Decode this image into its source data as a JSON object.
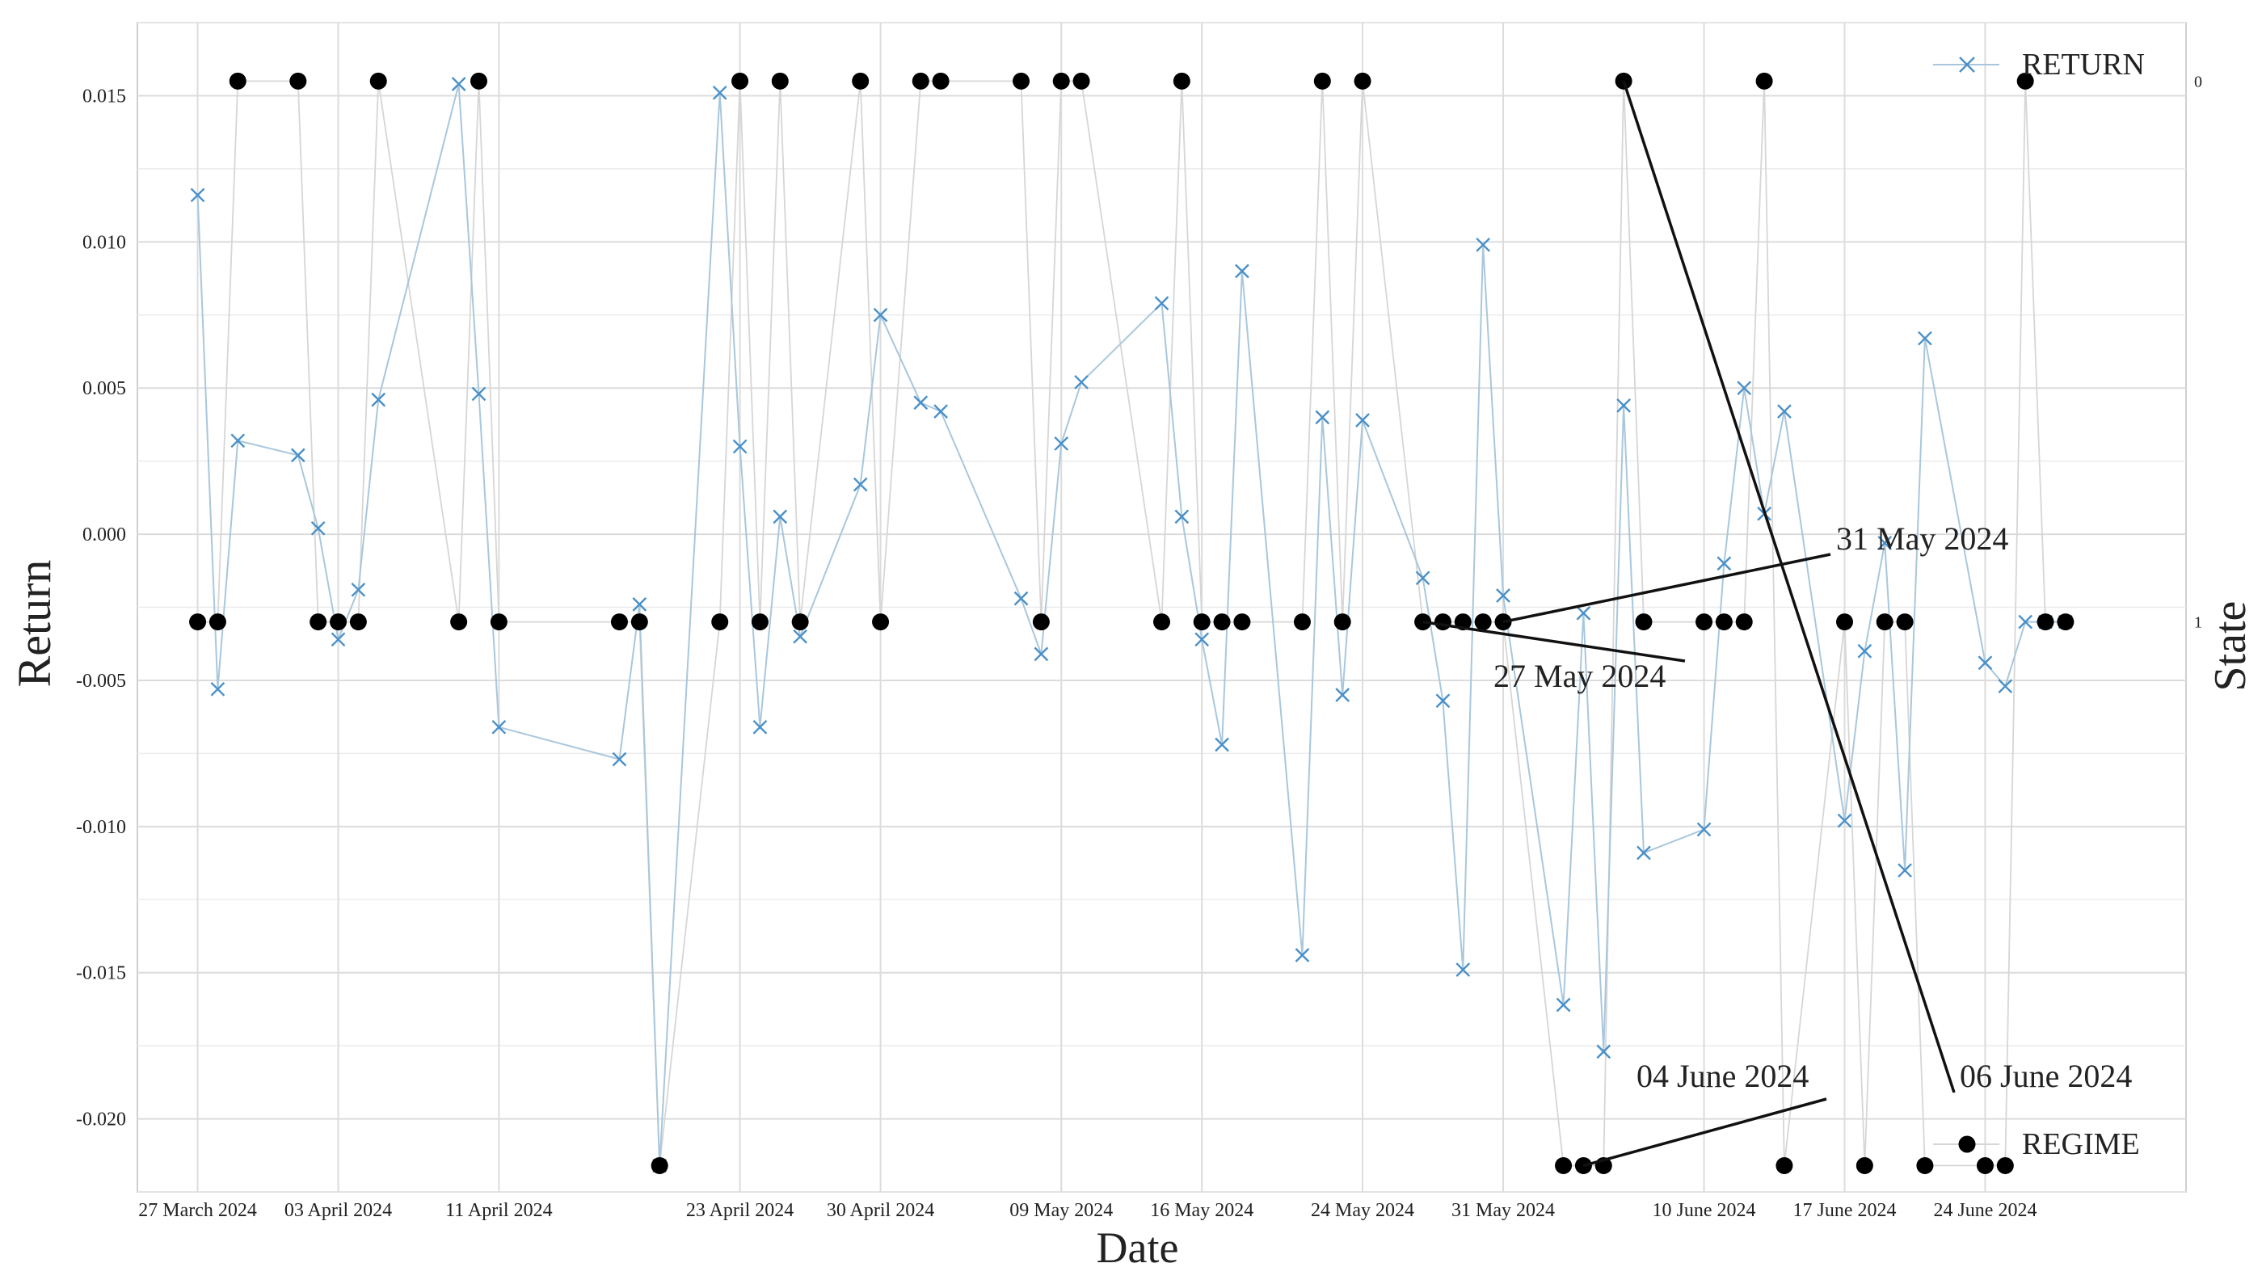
{
  "chart_data": {
    "type": "line",
    "xlabel": "Date",
    "ylabel": "Return",
    "y2label": "State",
    "ylim": [
      -0.0225,
      0.0175
    ],
    "yticks": [
      -0.02,
      -0.015,
      -0.01,
      -0.005,
      0.0,
      0.005,
      0.01,
      0.015
    ],
    "ytick_labels": [
      "-0.020",
      "-0.015",
      "-0.010",
      "-0.005",
      "0.000",
      "0.005",
      "0.010",
      "0.015"
    ],
    "y2ticks": [
      0,
      1
    ],
    "y2tick_labels": [
      "0",
      "1"
    ],
    "xlim": [
      "2024-03-24",
      "2024-07-04"
    ],
    "xticks": [
      "2024-03-27",
      "2024-04-03",
      "2024-04-11",
      "2024-04-23",
      "2024-04-30",
      "2024-05-09",
      "2024-05-16",
      "2024-05-24",
      "2024-05-31",
      "2024-06-10",
      "2024-06-17",
      "2024-06-24"
    ],
    "xtick_labels": [
      "27 March 2024",
      "03 April 2024",
      "11 April 2024",
      "23 April 2024",
      "30 April 2024",
      "09 May 2024",
      "16 May 2024",
      "24 May 2024",
      "31 May 2024",
      "10 June 2024",
      "17 June 2024",
      "24 June 2024"
    ],
    "grid": true,
    "legend_position": "right",
    "colors": {
      "return": "#4a90c8",
      "return_line": "#a9c7dc",
      "regime": "#000000",
      "regime_line": "#d6d6d6"
    },
    "series": [
      {
        "name": "RETURN",
        "axis": "left",
        "marker": "x",
        "x": [
          "2024-03-27",
          "2024-03-28",
          "2024-03-29",
          "2024-04-01",
          "2024-04-02",
          "2024-04-03",
          "2024-04-04",
          "2024-04-05",
          "2024-04-09",
          "2024-04-10",
          "2024-04-11",
          "2024-04-17",
          "2024-04-18",
          "2024-04-19",
          "2024-04-22",
          "2024-04-23",
          "2024-04-24",
          "2024-04-25",
          "2024-04-26",
          "2024-04-29",
          "2024-04-30",
          "2024-05-02",
          "2024-05-03",
          "2024-05-07",
          "2024-05-08",
          "2024-05-09",
          "2024-05-10",
          "2024-05-14",
          "2024-05-15",
          "2024-05-16",
          "2024-05-17",
          "2024-05-18",
          "2024-05-21",
          "2024-05-22",
          "2024-05-23",
          "2024-05-24",
          "2024-05-27",
          "2024-05-28",
          "2024-05-29",
          "2024-05-30",
          "2024-05-31",
          "2024-06-03",
          "2024-06-04",
          "2024-06-05",
          "2024-06-06",
          "2024-06-07",
          "2024-06-10",
          "2024-06-11",
          "2024-06-12",
          "2024-06-13",
          "2024-06-14",
          "2024-06-17",
          "2024-06-18",
          "2024-06-19",
          "2024-06-20",
          "2024-06-21",
          "2024-06-24",
          "2024-06-25",
          "2024-06-26",
          "2024-06-27",
          "2024-06-28"
        ],
        "values": [
          0.0116,
          -0.0053,
          0.0032,
          0.0027,
          0.0002,
          -0.0036,
          -0.0019,
          0.0046,
          0.0154,
          0.0048,
          -0.0066,
          -0.0077,
          -0.0024,
          -0.0216,
          0.0151,
          0.003,
          -0.0066,
          0.0006,
          -0.0035,
          0.0017,
          0.0075,
          0.0045,
          0.0042,
          -0.0022,
          -0.0041,
          0.0031,
          0.0052,
          0.0079,
          0.0006,
          -0.0036,
          -0.0072,
          0.009,
          -0.0144,
          0.004,
          -0.0055,
          0.0039,
          -0.0015,
          -0.0057,
          -0.0149,
          0.0099,
          -0.0021,
          -0.0161,
          -0.0027,
          -0.0177,
          0.0044,
          -0.0109,
          -0.0101,
          -0.001,
          0.005,
          0.0007,
          0.0042,
          -0.0098,
          -0.004,
          -0.0003,
          -0.0115,
          0.0067,
          -0.0044,
          -0.0052,
          -0.003,
          -0.003,
          -0.003
        ]
      },
      {
        "name": "REGIME",
        "axis": "right",
        "marker": "o",
        "x": [
          "2024-03-27",
          "2024-03-28",
          "2024-03-29",
          "2024-04-01",
          "2024-04-02",
          "2024-04-03",
          "2024-04-04",
          "2024-04-05",
          "2024-04-09",
          "2024-04-10",
          "2024-04-11",
          "2024-04-17",
          "2024-04-18",
          "2024-04-19",
          "2024-04-22",
          "2024-04-23",
          "2024-04-24",
          "2024-04-25",
          "2024-04-26",
          "2024-04-29",
          "2024-04-30",
          "2024-05-02",
          "2024-05-03",
          "2024-05-07",
          "2024-05-08",
          "2024-05-09",
          "2024-05-10",
          "2024-05-14",
          "2024-05-15",
          "2024-05-16",
          "2024-05-17",
          "2024-05-18",
          "2024-05-21",
          "2024-05-22",
          "2024-05-23",
          "2024-05-24",
          "2024-05-27",
          "2024-05-28",
          "2024-05-29",
          "2024-05-30",
          "2024-05-31",
          "2024-06-03",
          "2024-06-04",
          "2024-06-05",
          "2024-06-06",
          "2024-06-07",
          "2024-06-10",
          "2024-06-11",
          "2024-06-12",
          "2024-06-13",
          "2024-06-14",
          "2024-06-17",
          "2024-06-18",
          "2024-06-19",
          "2024-06-20",
          "2024-06-21",
          "2024-06-24",
          "2024-06-25",
          "2024-06-26",
          "2024-06-27",
          "2024-06-28"
        ],
        "values": [
          1,
          1,
          0,
          0,
          1,
          1,
          1,
          0,
          1,
          0,
          1,
          1,
          1,
          2,
          1,
          0,
          1,
          0,
          1,
          0,
          1,
          0,
          0,
          0,
          1,
          0,
          0,
          1,
          0,
          1,
          1,
          1,
          1,
          0,
          1,
          0,
          1,
          1,
          1,
          1,
          1,
          2,
          2,
          2,
          0,
          1,
          1,
          1,
          1,
          0,
          2,
          1,
          2,
          1,
          1,
          2,
          2,
          2,
          0,
          1,
          1
        ]
      }
    ],
    "annotations": [
      {
        "text": "27 May 2024",
        "date": "2024-05-27"
      },
      {
        "text": "31 May 2024",
        "date": "2024-05-31"
      },
      {
        "text": "04 June 2024",
        "date": "2024-06-04"
      },
      {
        "text": "06 June 2024",
        "date": "2024-06-06"
      }
    ]
  }
}
